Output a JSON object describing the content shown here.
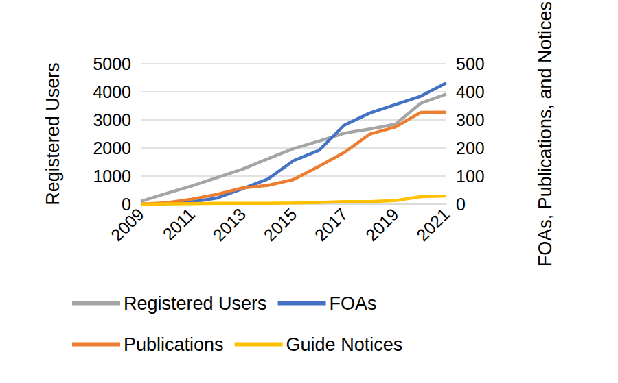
{
  "chart_data": {
    "type": "line",
    "categories": [
      "2009",
      null,
      "2011",
      null,
      "2013",
      null,
      "2015",
      null,
      "2017",
      null,
      "2019",
      null,
      "2021"
    ],
    "ylabel": "Registered Users",
    "y2label": "FOAs, Publications, and Notices",
    "ylim": [
      0,
      5000
    ],
    "yticks": [
      0,
      1000,
      2000,
      3000,
      4000,
      5000
    ],
    "y2lim": [
      0,
      500
    ],
    "y2ticks": [
      0,
      100,
      200,
      300,
      400,
      500
    ],
    "grid": true,
    "legend": "bottom",
    "series": [
      {
        "name": "Registered Users",
        "color": "#a5a5a5",
        "values": [
          100,
          380,
          650,
          950,
          1250,
          1620,
          1980,
          2250,
          2530,
          2680,
          2850,
          3600,
          3920
        ]
      },
      {
        "name": "FOAs",
        "color": "#4472c4",
        "axis": "y2",
        "values": [
          0,
          2,
          8,
          22,
          55,
          90,
          155,
          192,
          282,
          325,
          355,
          385,
          432
        ]
      },
      {
        "name": "Publications",
        "color": "#ed7d31",
        "axis": "y2",
        "values": [
          0,
          5,
          18,
          35,
          58,
          67,
          88,
          135,
          185,
          250,
          275,
          327,
          328
        ]
      },
      {
        "name": "Guide Notices",
        "color": "#ffc000",
        "axis": "y2",
        "values": [
          0,
          1,
          2,
          3,
          3,
          3,
          4,
          6,
          9,
          9,
          13,
          27,
          29
        ]
      }
    ]
  }
}
